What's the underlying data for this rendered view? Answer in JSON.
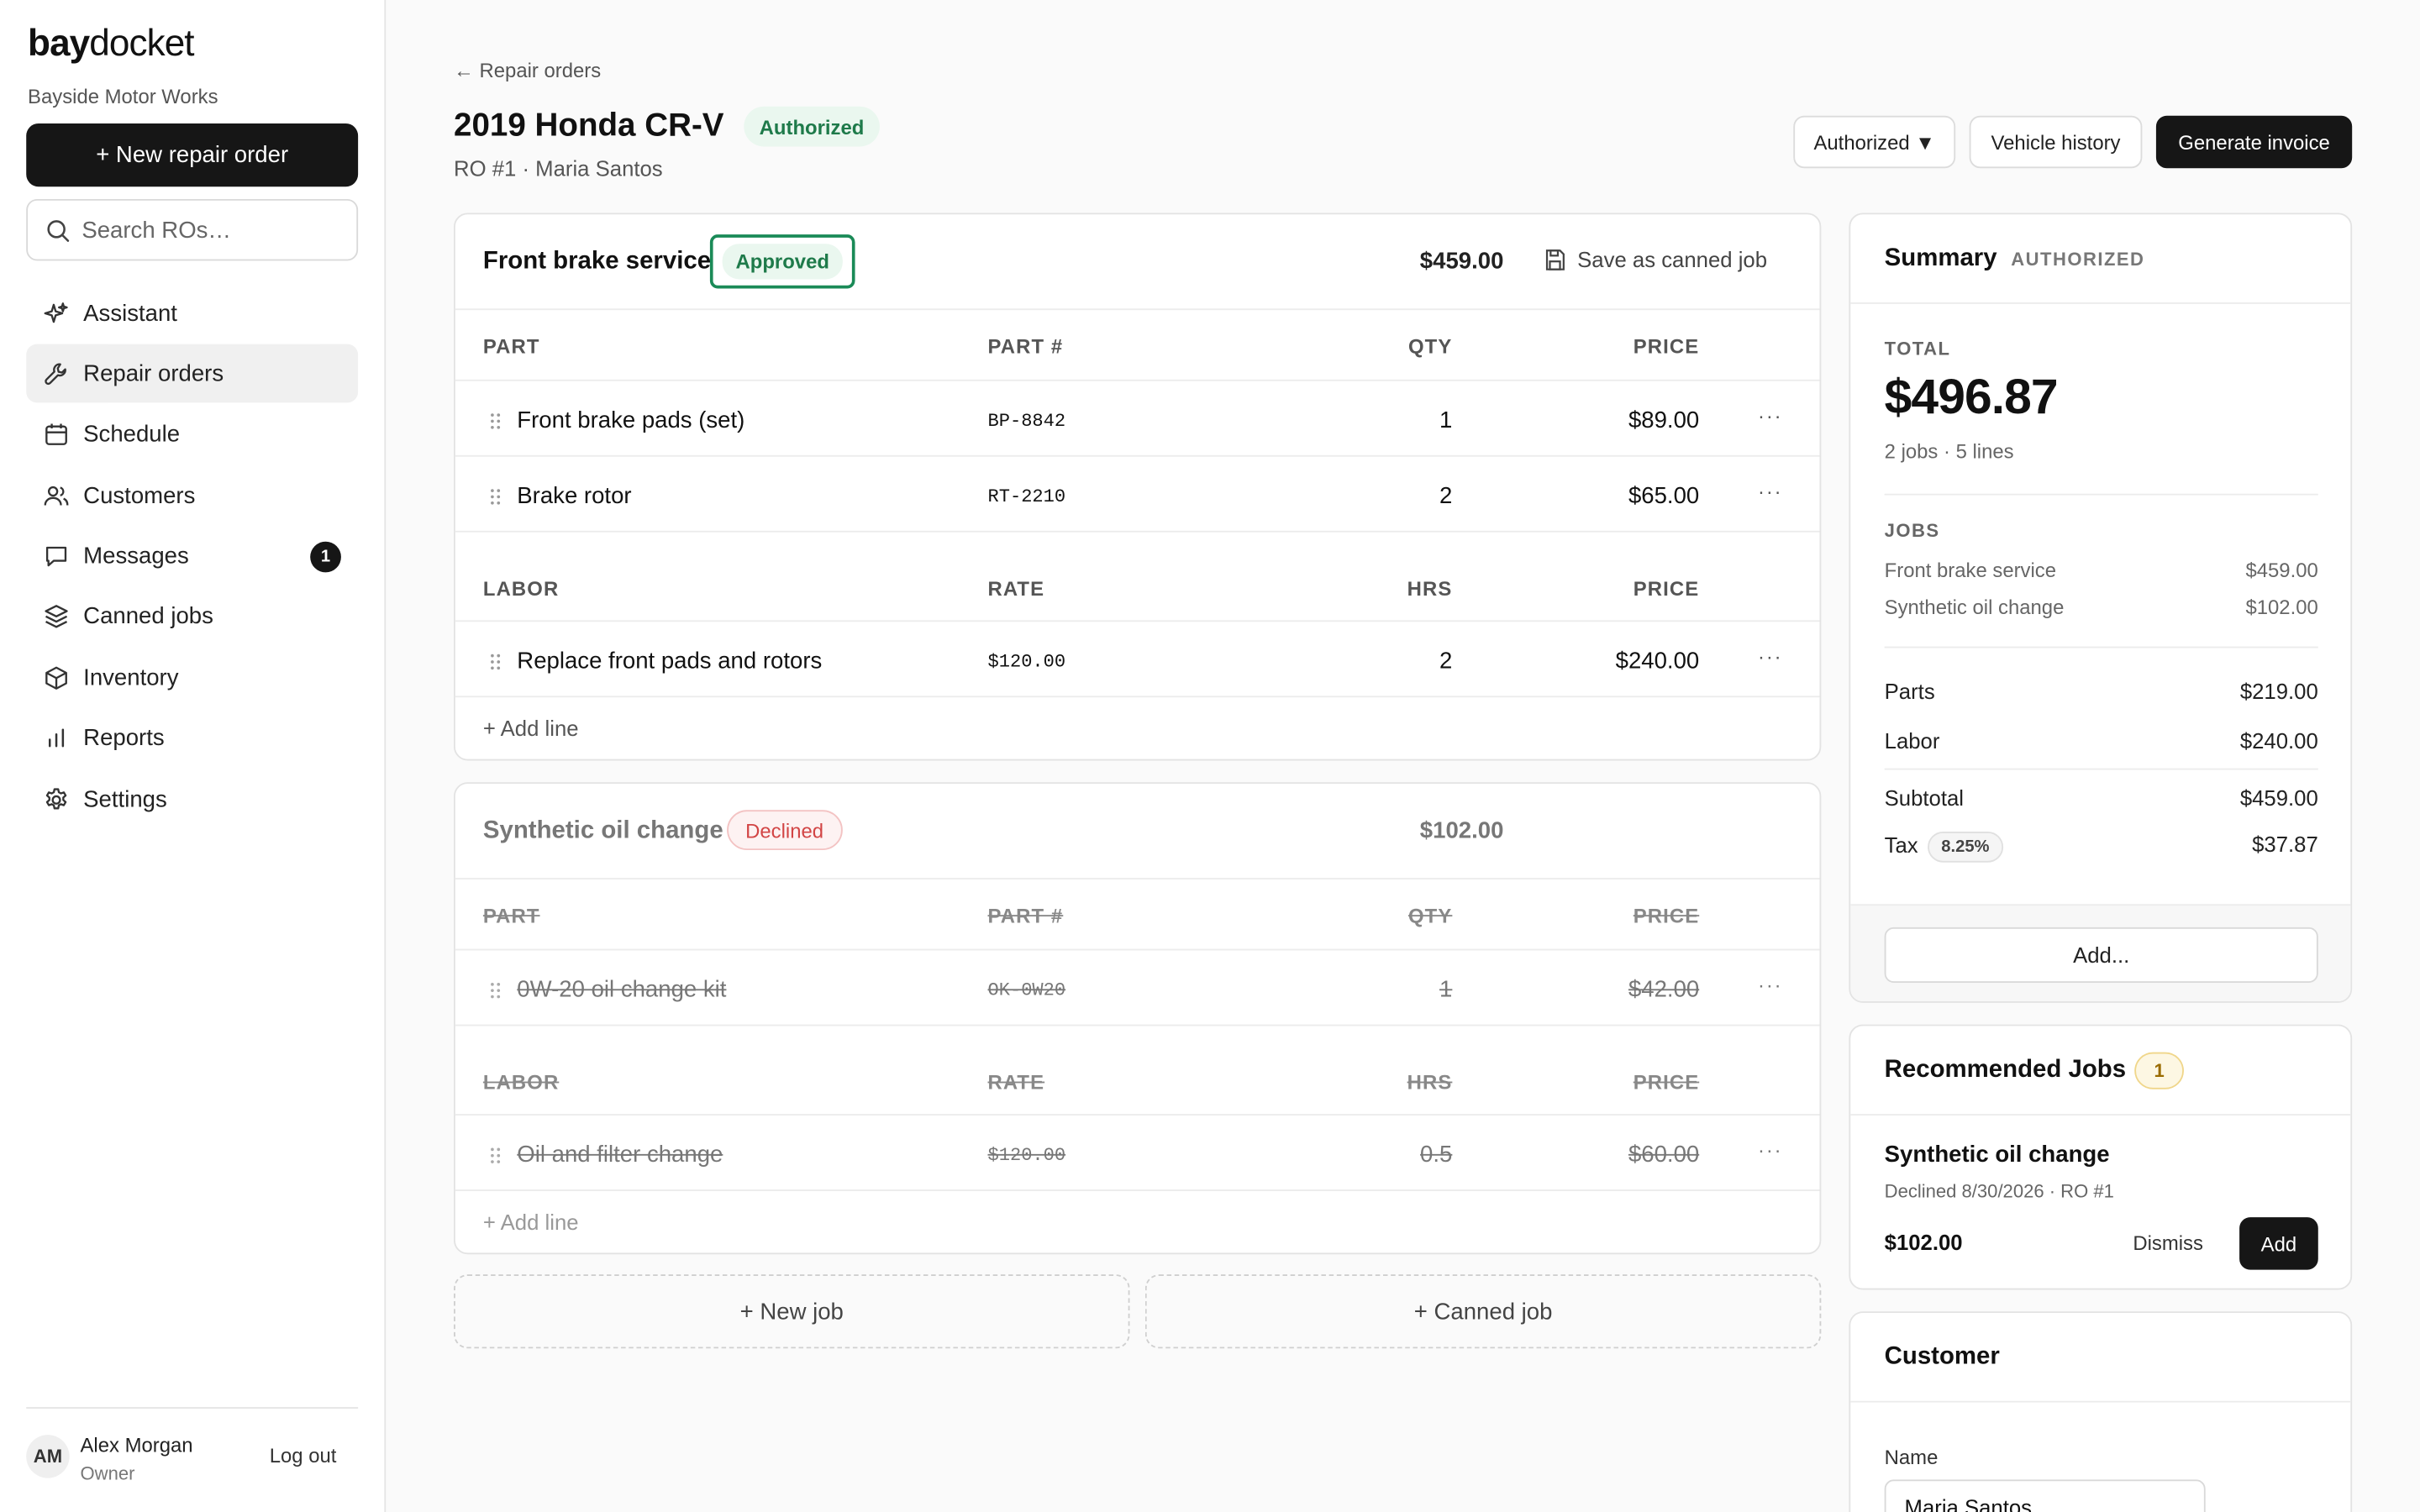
{
  "brand": {
    "bold": "bay",
    "light": "docket",
    "shop": "Bayside Motor Works"
  },
  "sidebar": {
    "new_button": "+ New repair order",
    "search_placeholder": "Search ROs…",
    "items": [
      {
        "label": "Assistant",
        "icon": "sparkle-icon"
      },
      {
        "label": "Repair orders",
        "icon": "wrench-icon",
        "active": true
      },
      {
        "label": "Schedule",
        "icon": "calendar-icon"
      },
      {
        "label": "Customers",
        "icon": "users-icon"
      },
      {
        "label": "Messages",
        "icon": "message-icon",
        "badge": "1"
      },
      {
        "label": "Canned jobs",
        "icon": "layers-icon"
      },
      {
        "label": "Inventory",
        "icon": "box-icon"
      },
      {
        "label": "Reports",
        "icon": "bar-chart-icon"
      },
      {
        "label": "Settings",
        "icon": "gear-icon"
      }
    ],
    "user": {
      "initials": "AM",
      "name": "Alex Morgan",
      "role": "Owner",
      "logout": "Log out"
    }
  },
  "header": {
    "back_link": "← Repair orders",
    "title": "2019 Honda CR-V",
    "status": "Authorized",
    "subtitle": "RO #1 · Maria Santos",
    "status_dropdown": "Authorized ▼",
    "vehicle_history": "Vehicle history",
    "generate_invoice": "Generate invoice"
  },
  "jobs": [
    {
      "name": "Front brake service",
      "status": "Approved",
      "total": "$459.00",
      "save_canned": "Save as canned job",
      "parts_headers": [
        "PART",
        "PART #",
        "QTY",
        "PRICE"
      ],
      "parts": [
        {
          "name": "Front brake pads (set)",
          "code": "BP-8842",
          "qty": "1",
          "price": "$89.00"
        },
        {
          "name": "Brake rotor",
          "code": "RT-2210",
          "qty": "2",
          "price": "$65.00"
        }
      ],
      "labor_headers": [
        "LABOR",
        "RATE",
        "HRS",
        "PRICE"
      ],
      "labor": [
        {
          "name": "Replace front pads and rotors",
          "rate": "$120.00",
          "hrs": "2",
          "price": "$240.00"
        }
      ],
      "add_line": "+ Add line"
    },
    {
      "name": "Synthetic oil change",
      "status": "Declined",
      "total": "$102.00",
      "parts_headers": [
        "PART",
        "PART #",
        "QTY",
        "PRICE"
      ],
      "parts": [
        {
          "name": "0W-20 oil change kit",
          "code": "OK-0W20",
          "qty": "1",
          "price": "$42.00"
        }
      ],
      "labor_headers": [
        "LABOR",
        "RATE",
        "HRS",
        "PRICE"
      ],
      "labor": [
        {
          "name": "Oil and filter change",
          "rate": "$120.00",
          "hrs": "0.5",
          "price": "$60.00"
        }
      ],
      "add_line": "+ Add line"
    }
  ],
  "actions": {
    "new_job": "+ New job",
    "canned_job": "+ Canned job"
  },
  "summary": {
    "title": "Summary",
    "tag": "AUTHORIZED",
    "total_label": "TOTAL",
    "total": "$496.87",
    "meta": "2 jobs · 5 lines",
    "jobs_label": "JOBS",
    "jobs": [
      {
        "name": "Front brake service",
        "amount": "$459.00"
      },
      {
        "name": "Synthetic oil change",
        "amount": "$102.00"
      }
    ],
    "parts_label": "Parts",
    "parts": "$219.00",
    "labor_label": "Labor",
    "labor": "$240.00",
    "subtotal_label": "Subtotal",
    "subtotal": "$459.00",
    "tax_label": "Tax",
    "tax_rate": "8.25%",
    "tax": "$37.87",
    "add_button": "Add..."
  },
  "recommended": {
    "title": "Recommended Jobs",
    "count": "1",
    "job_name": "Synthetic oil change",
    "job_sub": "Declined 8/30/2026 · RO #1",
    "price": "$102.00",
    "dismiss": "Dismiss",
    "add": "Add"
  },
  "customer": {
    "title": "Customer",
    "name_label": "Name",
    "name_value": "Maria Santos"
  }
}
